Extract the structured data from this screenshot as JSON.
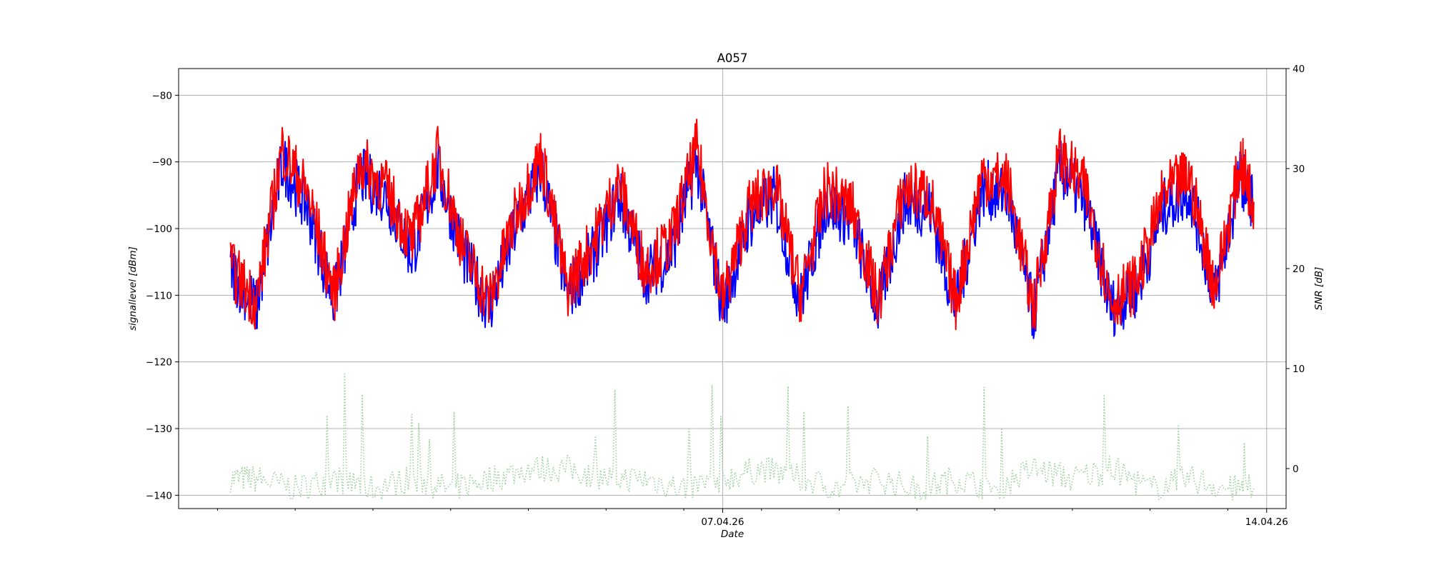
{
  "chart_data": {
    "type": "line",
    "title": "A057",
    "xlabel": "Date",
    "ylabel": "signallevel [dBm]",
    "y2label": "SNR [dB]",
    "x_ticks_major": [
      "07.04.26",
      "14.04.26"
    ],
    "x_range": [
      "2026-03-31 00:00",
      "2026-04-14 06:00"
    ],
    "ylim": [
      -142,
      -76
    ],
    "y_ticks": [
      -80,
      -90,
      -100,
      -110,
      -120,
      -130,
      -140
    ],
    "y2lim": [
      -4,
      40
    ],
    "y2_ticks": [
      0,
      10,
      20,
      30,
      40
    ],
    "grid": true,
    "colors": {
      "signal_a": "#0000ff",
      "signal_b": "#ff0000",
      "snr": "#9ccf9c"
    },
    "series": [
      {
        "color": "#0000ff",
        "axis": "left",
        "x": [
          "2026-03-31 16:00",
          "2026-04-01 00:00",
          "2026-04-01 08:00",
          "2026-04-01 16:00",
          "2026-04-02 00:00",
          "2026-04-02 08:00",
          "2026-04-02 16:00",
          "2026-04-03 00:00",
          "2026-04-03 08:00",
          "2026-04-03 16:00",
          "2026-04-04 00:00",
          "2026-04-04 08:00",
          "2026-04-04 16:00",
          "2026-04-05 00:00",
          "2026-04-05 08:00",
          "2026-04-05 16:00",
          "2026-04-06 00:00",
          "2026-04-06 08:00",
          "2026-04-06 16:00",
          "2026-04-07 00:00",
          "2026-04-07 08:00",
          "2026-04-07 16:00",
          "2026-04-08 00:00",
          "2026-04-08 08:00",
          "2026-04-08 16:00",
          "2026-04-09 00:00",
          "2026-04-09 08:00",
          "2026-04-09 16:00",
          "2026-04-10 00:00",
          "2026-04-10 08:00",
          "2026-04-10 16:00",
          "2026-04-11 00:00",
          "2026-04-11 08:00",
          "2026-04-11 16:00",
          "2026-04-12 00:00",
          "2026-04-12 08:00",
          "2026-04-12 16:00",
          "2026-04-13 00:00",
          "2026-04-13 08:00",
          "2026-04-13 16:00",
          "2026-04-13 20:00"
        ],
        "values": [
          -106,
          -112,
          -90,
          -97,
          -111,
          -92,
          -95,
          -104,
          -91,
          -104,
          -112,
          -100,
          -91,
          -110,
          -104,
          -95,
          -107,
          -104,
          -90,
          -112,
          -99,
          -95,
          -111,
          -96,
          -99,
          -112,
          -96,
          -97,
          -112,
          -94,
          -95,
          -113,
          -91,
          -96,
          -112,
          -109,
          -97,
          -94,
          -110,
          -92,
          -96
        ]
      },
      {
        "color": "#ff0000",
        "axis": "left",
        "x": [
          "2026-03-31 16:00",
          "2026-04-01 00:00",
          "2026-04-01 08:00",
          "2026-04-01 16:00",
          "2026-04-02 00:00",
          "2026-04-02 08:00",
          "2026-04-02 16:00",
          "2026-04-03 00:00",
          "2026-04-03 08:00",
          "2026-04-03 16:00",
          "2026-04-04 00:00",
          "2026-04-04 08:00",
          "2026-04-04 16:00",
          "2026-04-05 00:00",
          "2026-04-05 08:00",
          "2026-04-05 16:00",
          "2026-04-06 00:00",
          "2026-04-06 08:00",
          "2026-04-06 16:00",
          "2026-04-07 00:00",
          "2026-04-07 08:00",
          "2026-04-07 16:00",
          "2026-04-08 00:00",
          "2026-04-08 08:00",
          "2026-04-08 16:00",
          "2026-04-09 00:00",
          "2026-04-09 08:00",
          "2026-04-09 16:00",
          "2026-04-10 00:00",
          "2026-04-10 08:00",
          "2026-04-10 16:00",
          "2026-04-11 00:00",
          "2026-04-11 08:00",
          "2026-04-11 16:00",
          "2026-04-12 00:00",
          "2026-04-12 08:00",
          "2026-04-12 16:00",
          "2026-04-13 00:00",
          "2026-04-13 08:00",
          "2026-04-13 16:00",
          "2026-04-13 20:00"
        ],
        "values": [
          -106,
          -111,
          -88,
          -95,
          -110,
          -90,
          -94,
          -102,
          -89,
          -103,
          -111,
          -98,
          -89,
          -109,
          -102,
          -93,
          -106,
          -102,
          -88,
          -111,
          -97,
          -93,
          -110,
          -94,
          -97,
          -111,
          -94,
          -95,
          -111,
          -92,
          -93,
          -112,
          -89,
          -94,
          -111,
          -108,
          -95,
          -92,
          -109,
          -90,
          -96
        ]
      },
      {
        "color": "#9ccf9c",
        "axis": "right",
        "style": "dotted",
        "x": [
          "2026-03-31 16:00",
          "2026-04-01 00:00",
          "2026-04-01 12:00",
          "2026-04-02 00:00",
          "2026-04-02 12:00",
          "2026-04-03 00:00",
          "2026-04-03 12:00",
          "2026-04-04 00:00",
          "2026-04-04 12:00",
          "2026-04-05 00:00",
          "2026-04-05 12:00",
          "2026-04-06 00:00",
          "2026-04-06 12:00",
          "2026-04-07 00:00",
          "2026-04-07 12:00",
          "2026-04-08 00:00",
          "2026-04-08 12:00",
          "2026-04-09 00:00",
          "2026-04-09 12:00",
          "2026-04-10 00:00",
          "2026-04-10 12:00",
          "2026-04-11 00:00",
          "2026-04-11 12:00",
          "2026-04-12 00:00",
          "2026-04-12 12:00",
          "2026-04-13 00:00",
          "2026-04-13 12:00",
          "2026-04-13 20:00"
        ],
        "values": [
          -1,
          -1,
          -2,
          -1,
          -2,
          -1,
          -2,
          -1,
          0,
          0,
          -1,
          -1,
          -2,
          -1,
          0,
          -1,
          -2,
          -1,
          -2,
          -1,
          -2,
          0,
          -1,
          0,
          -2,
          -1,
          -2,
          -2
        ]
      }
    ]
  }
}
